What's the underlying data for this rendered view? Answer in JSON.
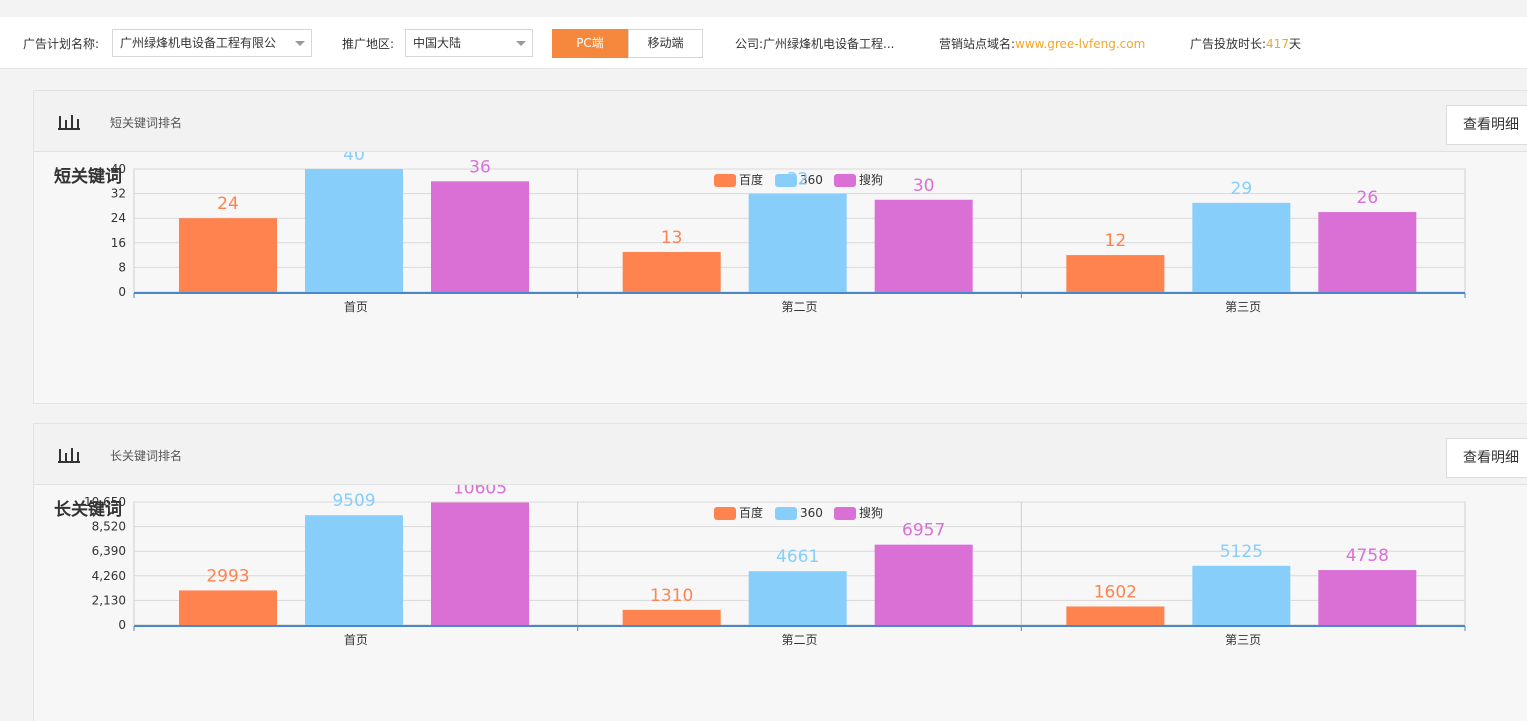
{
  "filters": {
    "plan_label": "广告计划名称:",
    "plan_value": "广州绿烽机电设备工程有限公",
    "region_label": "推广地区:",
    "region_value": "中国大陆",
    "pc_label": "PC端",
    "mobile_label": "移动端",
    "company_label": "公司:",
    "company_value": "广州绿烽机电设备工程...",
    "domain_label": "营销站点域名:",
    "domain_value": "www.gree-lvfeng.com",
    "duration_label": "广告投放时长:",
    "duration_value": "417",
    "duration_unit": "天"
  },
  "panels": [
    {
      "header_title": "短关键词排名",
      "detail_button": "查看明细",
      "icon": "bar-chart-icon"
    },
    {
      "header_title": "长关键词排名",
      "detail_button": "查看明细",
      "icon": "bar-chart-icon"
    }
  ],
  "colors": {
    "baidu": "#ff834f",
    "s360": "#87cefa",
    "sogou": "#da70d6",
    "axis": "#4a86c8",
    "accent": "#f5883c"
  },
  "chart_data": [
    {
      "type": "bar",
      "title": "短关键词",
      "categories": [
        "首页",
        "第二页",
        "第三页"
      ],
      "series": [
        {
          "name": "百度",
          "values": [
            24,
            13,
            12
          ]
        },
        {
          "name": "360",
          "values": [
            40,
            32,
            29
          ]
        },
        {
          "name": "搜狗",
          "values": [
            36,
            30,
            26
          ]
        }
      ],
      "yticks": [
        0,
        8,
        16,
        24,
        32,
        40
      ],
      "ytick_labels": [
        "0",
        "8",
        "16",
        "24",
        "32",
        "40"
      ],
      "ylim": [
        0,
        40
      ],
      "legend_position": "top-center",
      "grid": true
    },
    {
      "type": "bar",
      "title": "长关键词",
      "categories": [
        "首页",
        "第二页",
        "第三页"
      ],
      "series": [
        {
          "name": "百度",
          "values": [
            2993,
            1310,
            1602
          ]
        },
        {
          "name": "360",
          "values": [
            9509,
            4661,
            5125
          ]
        },
        {
          "name": "搜狗",
          "values": [
            10605,
            6957,
            4758
          ]
        }
      ],
      "yticks": [
        0,
        2130,
        4260,
        6390,
        8520,
        10650
      ],
      "ytick_labels": [
        "0",
        "2,130",
        "4,260",
        "6,390",
        "8,520",
        "10,650"
      ],
      "ylim": [
        0,
        10650
      ],
      "legend_position": "top-center",
      "grid": true
    }
  ]
}
